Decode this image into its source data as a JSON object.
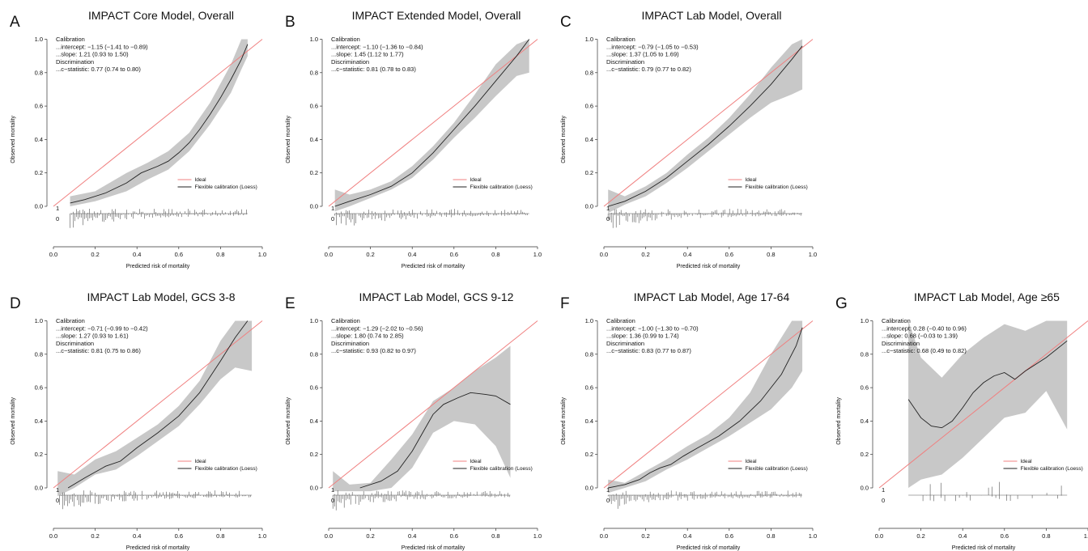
{
  "styles": {
    "ideal_color": "#f08080",
    "loess_color": "#222222",
    "band_color": "#c8c8c8",
    "spike_color": "#555555"
  },
  "chart_data": [
    {
      "type": "line",
      "panel": "A",
      "title": "IMPACT Core Model, Overall",
      "xlabel": "Predicted risk of mortality",
      "ylabel": "Observed mortality",
      "xlim": [
        0,
        1
      ],
      "ylim": [
        -0.15,
        1.0
      ],
      "xticks": [
        "0.0",
        "0.2",
        "0.4",
        "0.6",
        "0.8",
        "1.0"
      ],
      "yticks": [
        "0.0",
        "0.2",
        "0.4",
        "0.6",
        "0.8",
        "1.0"
      ],
      "annotations": [
        "Calibration",
        "...intercept: −1.15 (−1.41 to −0.89)",
        "...slope: 1.21 (0.93 to 1.50)",
        "Discrimination",
        "...c−statistic: 0.77 (0.74 to 0.80)"
      ],
      "legend": {
        "position": "right",
        "entries": [
          "Ideal",
          "Flexible calibration (Loess)"
        ]
      },
      "rug_labels": [
        "1",
        "0"
      ],
      "series": [
        {
          "name": "Ideal",
          "x": [
            0.0,
            1.0
          ],
          "y": [
            0.0,
            1.0
          ]
        },
        {
          "name": "Flexible calibration (Loess)",
          "x": [
            0.08,
            0.15,
            0.25,
            0.35,
            0.42,
            0.5,
            0.55,
            0.6,
            0.65,
            0.7,
            0.75,
            0.8,
            0.85,
            0.9,
            0.93
          ],
          "y": [
            0.02,
            0.04,
            0.08,
            0.14,
            0.2,
            0.24,
            0.27,
            0.32,
            0.38,
            0.46,
            0.55,
            0.65,
            0.76,
            0.88,
            0.97
          ]
        }
      ],
      "band": {
        "x": [
          0.08,
          0.2,
          0.35,
          0.45,
          0.55,
          0.65,
          0.75,
          0.85,
          0.9,
          0.93
        ],
        "lower": [
          0.0,
          0.03,
          0.09,
          0.16,
          0.22,
          0.33,
          0.49,
          0.68,
          0.82,
          0.9
        ],
        "upper": [
          0.06,
          0.09,
          0.2,
          0.26,
          0.33,
          0.44,
          0.62,
          0.85,
          1.0,
          1.0
        ]
      },
      "rug": {
        "x_min": 0.08,
        "x_max": 0.93
      }
    },
    {
      "type": "line",
      "panel": "B",
      "title": "IMPACT Extended Model, Overall",
      "xlabel": "Predicted risk of mortality",
      "ylabel": "Observed mortality",
      "xlim": [
        0,
        1
      ],
      "ylim": [
        -0.15,
        1.0
      ],
      "xticks": [
        "0.0",
        "0.2",
        "0.4",
        "0.6",
        "0.8",
        "1.0"
      ],
      "yticks": [
        "0.0",
        "0.2",
        "0.4",
        "0.6",
        "0.8",
        "1.0"
      ],
      "annotations": [
        "Calibration",
        "...intercept: −1.10 (−1.36 to −0.84)",
        "...slope: 1.45 (1.12 to 1.77)",
        "Discrimination",
        "...c−statistic: 0.81 (0.78 to 0.83)"
      ],
      "legend": {
        "position": "right",
        "entries": [
          "Ideal",
          "Flexible calibration (Loess)"
        ]
      },
      "rug_labels": [
        "1",
        "0"
      ],
      "series": [
        {
          "name": "Ideal",
          "x": [
            0.0,
            1.0
          ],
          "y": [
            0.0,
            1.0
          ]
        },
        {
          "name": "Flexible calibration (Loess)",
          "x": [
            0.03,
            0.1,
            0.2,
            0.3,
            0.4,
            0.5,
            0.6,
            0.7,
            0.8,
            0.9,
            0.96
          ],
          "y": [
            0.0,
            0.03,
            0.07,
            0.12,
            0.2,
            0.32,
            0.46,
            0.6,
            0.75,
            0.9,
            1.0
          ]
        }
      ],
      "band": {
        "x": [
          0.03,
          0.1,
          0.2,
          0.3,
          0.4,
          0.5,
          0.6,
          0.7,
          0.8,
          0.9,
          0.96
        ],
        "lower": [
          -0.03,
          0.0,
          0.05,
          0.1,
          0.17,
          0.28,
          0.41,
          0.53,
          0.66,
          0.78,
          0.8
        ],
        "upper": [
          0.1,
          0.07,
          0.1,
          0.15,
          0.24,
          0.36,
          0.5,
          0.67,
          0.85,
          0.97,
          1.0
        ]
      },
      "rug": {
        "x_min": 0.03,
        "x_max": 0.96
      }
    },
    {
      "type": "line",
      "panel": "C",
      "title": "IMPACT Lab Model, Overall",
      "xlabel": "Predicted risk of mortality",
      "ylabel": "Observed mortality",
      "xlim": [
        0,
        1
      ],
      "ylim": [
        -0.15,
        1.0
      ],
      "xticks": [
        "0.0",
        "0.2",
        "0.4",
        "0.6",
        "0.8",
        "1.0"
      ],
      "yticks": [
        "0.0",
        "0.2",
        "0.4",
        "0.6",
        "0.8",
        "1.0"
      ],
      "annotations": [
        "Calibration",
        "...intercept: −0.79 (−1.05 to −0.53)",
        "...slope: 1.37 (1.05 to 1.69)",
        "Discrimination",
        "...c−statistic: 0.79 (0.77 to 0.82)"
      ],
      "legend": {
        "position": "right",
        "entries": [
          "Ideal",
          "Flexible calibration (Loess)"
        ]
      },
      "rug_labels": [
        "1",
        "0"
      ],
      "series": [
        {
          "name": "Ideal",
          "x": [
            0.0,
            1.0
          ],
          "y": [
            0.0,
            1.0
          ]
        },
        {
          "name": "Flexible calibration (Loess)",
          "x": [
            0.02,
            0.1,
            0.2,
            0.3,
            0.4,
            0.5,
            0.6,
            0.7,
            0.8,
            0.9,
            0.95
          ],
          "y": [
            0.0,
            0.03,
            0.09,
            0.17,
            0.27,
            0.37,
            0.48,
            0.6,
            0.73,
            0.88,
            0.96
          ]
        }
      ],
      "band": {
        "x": [
          0.02,
          0.1,
          0.2,
          0.3,
          0.4,
          0.5,
          0.6,
          0.7,
          0.8,
          0.9,
          0.95
        ],
        "lower": [
          -0.04,
          0.01,
          0.06,
          0.14,
          0.23,
          0.33,
          0.43,
          0.53,
          0.62,
          0.67,
          0.7
        ],
        "upper": [
          0.1,
          0.06,
          0.12,
          0.2,
          0.31,
          0.41,
          0.53,
          0.67,
          0.83,
          0.97,
          1.0
        ]
      },
      "rug": {
        "x_min": 0.02,
        "x_max": 0.95
      }
    },
    {
      "type": "line",
      "panel": "D",
      "title": "IMPACT Lab Model, GCS 3-8",
      "xlabel": "Predicted risk of mortality",
      "ylabel": "Observed mortality",
      "xlim": [
        0,
        1
      ],
      "ylim": [
        -0.15,
        1.0
      ],
      "xticks": [
        "0.0",
        "0.2",
        "0.4",
        "0.6",
        "0.8",
        "1.0"
      ],
      "yticks": [
        "0.0",
        "0.2",
        "0.4",
        "0.6",
        "0.8",
        "1.0"
      ],
      "annotations": [
        "Calibration",
        "...intercept: −0.71 (−0.99 to −0.42)",
        "...slope: 1.27 (0.93 to 1.61)",
        "Discrimination",
        "...c−statistic: 0.81 (0.75 to 0.86)"
      ],
      "legend": {
        "position": "right",
        "entries": [
          "Ideal",
          "Flexible calibration (Loess)"
        ]
      },
      "rug_labels": [
        "1",
        "0"
      ],
      "series": [
        {
          "name": "Ideal",
          "x": [
            0.0,
            1.0
          ],
          "y": [
            0.0,
            1.0
          ]
        },
        {
          "name": "Flexible calibration (Loess)",
          "x": [
            0.07,
            0.15,
            0.25,
            0.32,
            0.4,
            0.5,
            0.6,
            0.7,
            0.8,
            0.87,
            0.93
          ],
          "y": [
            0.0,
            0.06,
            0.13,
            0.16,
            0.24,
            0.33,
            0.43,
            0.57,
            0.76,
            0.9,
            1.0
          ]
        }
      ],
      "band": {
        "x": [
          0.02,
          0.1,
          0.2,
          0.3,
          0.4,
          0.5,
          0.6,
          0.7,
          0.8,
          0.87,
          0.95
        ],
        "lower": [
          -0.05,
          0.0,
          0.08,
          0.11,
          0.19,
          0.28,
          0.37,
          0.5,
          0.65,
          0.72,
          0.7
        ],
        "upper": [
          0.1,
          0.08,
          0.17,
          0.22,
          0.3,
          0.38,
          0.49,
          0.64,
          0.88,
          1.0,
          1.0
        ]
      },
      "rug": {
        "x_min": 0.03,
        "x_max": 0.95
      }
    },
    {
      "type": "line",
      "panel": "E",
      "title": "IMPACT Lab Model, GCS 9-12",
      "xlabel": "Predicted risk of mortality",
      "ylabel": "Observed mortality",
      "xlim": [
        0,
        1
      ],
      "ylim": [
        -0.15,
        1.0
      ],
      "xticks": [
        "0.0",
        "0.2",
        "0.4",
        "0.6",
        "0.8",
        "1.0"
      ],
      "yticks": [
        "0.0",
        "0.2",
        "0.4",
        "0.6",
        "0.8",
        "1.0"
      ],
      "annotations": [
        "Calibration",
        "...intercept: −1.29 (−2.02 to −0.56)",
        "...slope: 1.80 (0.74 to 2.85)",
        "Discrimination",
        "...c−statistic: 0.93 (0.82 to 0.97)"
      ],
      "legend": {
        "position": "right",
        "entries": [
          "Ideal",
          "Flexible calibration (Loess)"
        ]
      },
      "rug_labels": [
        "1",
        "0"
      ],
      "series": [
        {
          "name": "Ideal",
          "x": [
            0.0,
            1.0
          ],
          "y": [
            0.0,
            1.0
          ]
        },
        {
          "name": "Flexible calibration (Loess)",
          "x": [
            0.15,
            0.25,
            0.33,
            0.4,
            0.45,
            0.5,
            0.55,
            0.62,
            0.68,
            0.75,
            0.8,
            0.87
          ],
          "y": [
            0.0,
            0.04,
            0.1,
            0.22,
            0.33,
            0.44,
            0.5,
            0.54,
            0.57,
            0.56,
            0.55,
            0.5
          ]
        }
      ],
      "band": {
        "x": [
          0.02,
          0.1,
          0.2,
          0.3,
          0.4,
          0.5,
          0.6,
          0.7,
          0.8,
          0.87
        ],
        "lower": [
          -0.02,
          -0.02,
          -0.02,
          0.0,
          0.12,
          0.33,
          0.4,
          0.38,
          0.25,
          0.06
        ],
        "upper": [
          0.1,
          0.02,
          0.03,
          0.17,
          0.32,
          0.52,
          0.6,
          0.7,
          0.78,
          0.85
        ]
      },
      "rug": {
        "x_min": 0.02,
        "x_max": 0.87
      }
    },
    {
      "type": "line",
      "panel": "F",
      "title": "IMPACT Lab Model, Age 17-64",
      "xlabel": "Predicted risk of mortality",
      "ylabel": "Observed mortality",
      "xlim": [
        0,
        1
      ],
      "ylim": [
        -0.15,
        1.0
      ],
      "xticks": [
        "0.0",
        "0.2",
        "0.4",
        "0.6",
        "0.8",
        "1.0"
      ],
      "yticks": [
        "0.0",
        "0.2",
        "0.4",
        "0.6",
        "0.8",
        "1.0"
      ],
      "annotations": [
        "Calibration",
        "...intercept: −1.00 (−1.30 to −0.70)",
        "...slope: 1.36 (0.99 to 1.74)",
        "Discrimination",
        "...c−statistic: 0.83 (0.77 to 0.87)"
      ],
      "legend": {
        "position": "right",
        "entries": [
          "Ideal",
          "Flexible calibration (Loess)"
        ]
      },
      "rug_labels": [
        "1",
        "0"
      ],
      "series": [
        {
          "name": "Ideal",
          "x": [
            0.0,
            1.0
          ],
          "y": [
            0.0,
            1.0
          ]
        },
        {
          "name": "Flexible calibration (Loess)",
          "x": [
            0.02,
            0.1,
            0.17,
            0.22,
            0.27,
            0.32,
            0.38,
            0.45,
            0.55,
            0.65,
            0.75,
            0.85,
            0.92,
            0.95
          ],
          "y": [
            0.0,
            0.02,
            0.05,
            0.09,
            0.12,
            0.14,
            0.19,
            0.24,
            0.31,
            0.4,
            0.52,
            0.68,
            0.85,
            0.96
          ]
        }
      ],
      "band": {
        "x": [
          0.02,
          0.1,
          0.2,
          0.3,
          0.4,
          0.5,
          0.6,
          0.7,
          0.8,
          0.9,
          0.95
        ],
        "lower": [
          -0.03,
          0.0,
          0.04,
          0.11,
          0.17,
          0.24,
          0.31,
          0.39,
          0.47,
          0.6,
          0.7
        ],
        "upper": [
          0.05,
          0.03,
          0.1,
          0.17,
          0.25,
          0.32,
          0.42,
          0.57,
          0.8,
          1.0,
          1.0
        ]
      },
      "rug": {
        "x_min": 0.02,
        "x_max": 0.95
      }
    },
    {
      "type": "line",
      "panel": "G",
      "title": "IMPACT Lab Model, Age ≥65",
      "xlabel": "Predicted risk of mortality",
      "ylabel": "Observed mortality",
      "xlim": [
        0,
        1
      ],
      "ylim": [
        -0.15,
        1.0
      ],
      "xticks": [
        "0.0",
        "0.2",
        "0.4",
        "0.6",
        "0.8",
        "1.0"
      ],
      "yticks": [
        "0.0",
        "0.2",
        "0.4",
        "0.6",
        "0.8",
        "1.0"
      ],
      "annotations": [
        "Calibration",
        "...intercept: 0.28 (−0.40 to 0.96)",
        "...slope: 0.68 (−0.03 to 1.39)",
        "Discrimination",
        "...c−statistic: 0.68 (0.49 to 0.82)"
      ],
      "legend": {
        "position": "right",
        "entries": [
          "Ideal",
          "Flexible calibration (Loess)"
        ]
      },
      "rug_labels": [
        "1",
        "0"
      ],
      "series": [
        {
          "name": "Ideal",
          "x": [
            0.0,
            1.0
          ],
          "y": [
            0.0,
            1.0
          ]
        },
        {
          "name": "Flexible calibration (Loess)",
          "x": [
            0.14,
            0.2,
            0.25,
            0.3,
            0.35,
            0.4,
            0.45,
            0.5,
            0.55,
            0.6,
            0.65,
            0.7,
            0.8,
            0.9
          ],
          "y": [
            0.53,
            0.42,
            0.37,
            0.36,
            0.4,
            0.48,
            0.57,
            0.63,
            0.67,
            0.69,
            0.65,
            0.7,
            0.78,
            0.88
          ]
        }
      ],
      "band": {
        "x": [
          0.14,
          0.2,
          0.3,
          0.4,
          0.5,
          0.6,
          0.7,
          0.8,
          0.9
        ],
        "lower": [
          0.0,
          0.05,
          0.08,
          0.18,
          0.3,
          0.42,
          0.45,
          0.58,
          0.35
        ],
        "upper": [
          1.0,
          0.78,
          0.66,
          0.8,
          0.9,
          0.98,
          0.94,
          1.0,
          1.0
        ]
      },
      "rug": {
        "x_min": 0.14,
        "x_max": 0.9
      }
    }
  ]
}
